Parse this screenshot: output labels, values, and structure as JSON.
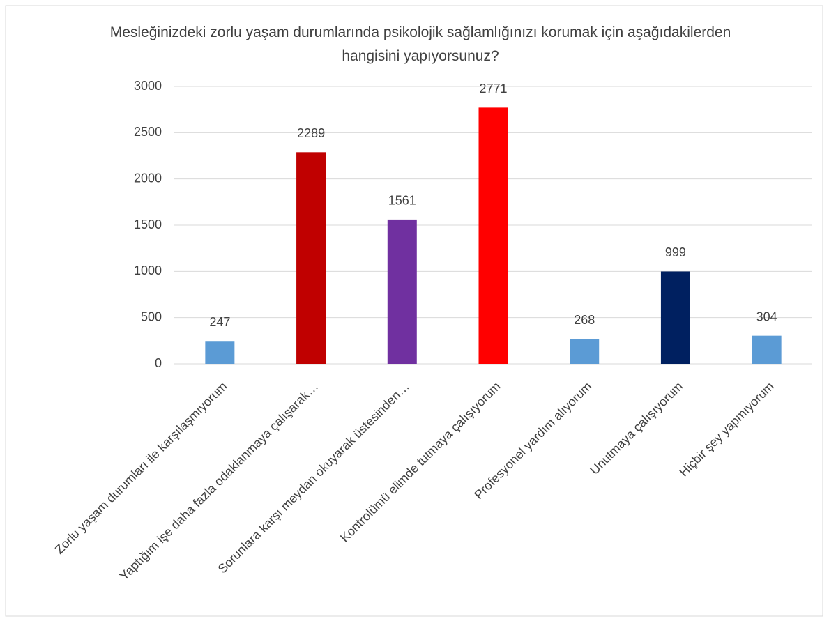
{
  "chart_data": {
    "type": "bar",
    "title": "Mesleğinizdeki zorlu yaşam durumlarında psikolojik sağlamlığınızı korumak için aşağıdakilerden hangisini yapıyorsunuz?",
    "categories": [
      "Zorlu yaşam durumları ile karşılaşmıyorum",
      "Yaptığım işe daha fazla odaklanmaya çalışarak…",
      "Sorunlara karşı meydan okuyarak üstesinden…",
      "Kontrolümü elimde tutmaya çalışıyorum",
      "Profesyonel yardım alıyorum",
      "Unutmaya çalışıyorum",
      "Hiçbir şey yapmıyorum"
    ],
    "values": [
      247,
      2289,
      1561,
      2771,
      268,
      999,
      304
    ],
    "colors": [
      "#5b9bd5",
      "#c00000",
      "#7030a0",
      "#ff0000",
      "#5b9bd5",
      "#002060",
      "#5b9bd5"
    ],
    "ylim": [
      0,
      3000
    ],
    "yticks": [
      0,
      500,
      1000,
      1500,
      2000,
      2500,
      3000
    ],
    "grid": true
  }
}
